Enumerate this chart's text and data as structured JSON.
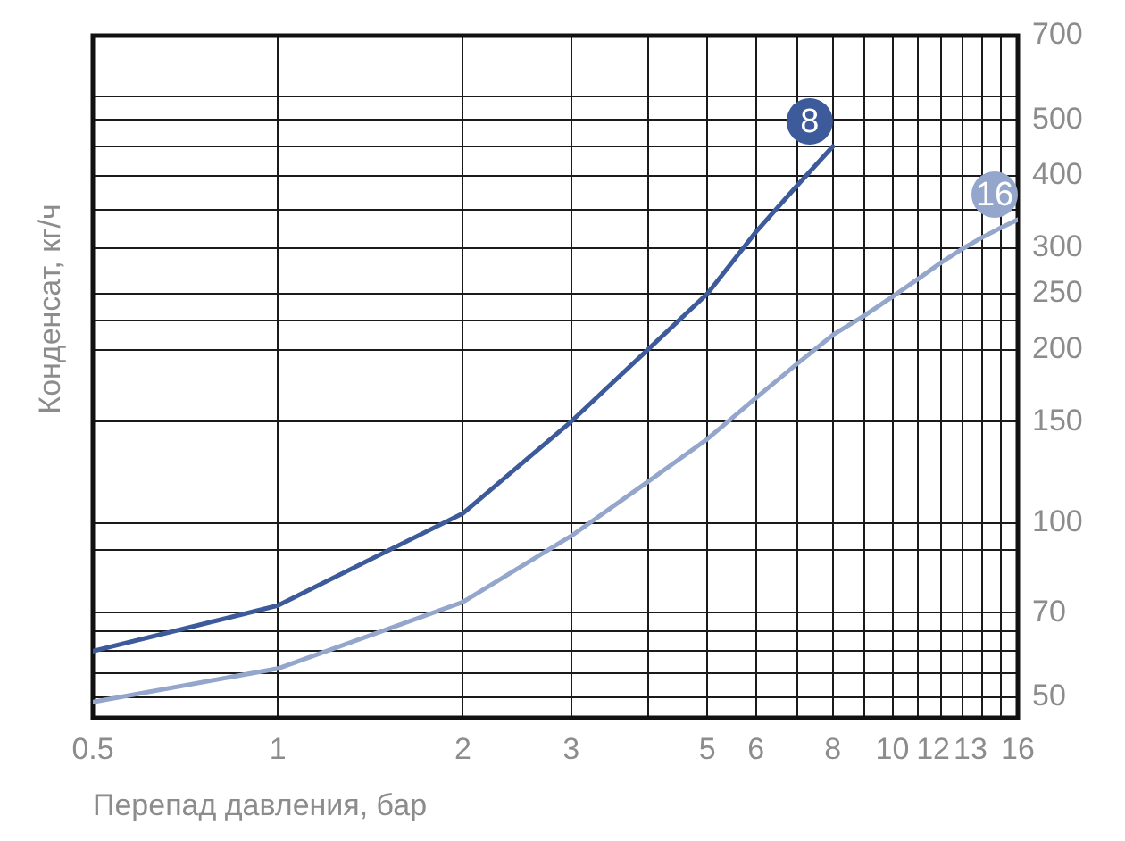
{
  "chart_data": {
    "type": "line",
    "xlabel": "Перепад давления, бар",
    "ylabel": "Конденсат, кг/ч",
    "log": "xy",
    "grid": true,
    "xlim": [
      0.5,
      16
    ],
    "xticks": [
      0.5,
      1,
      2,
      3,
      {
        "value": 4,
        "label": null
      },
      5,
      6,
      {
        "value": 7,
        "label": null
      },
      8,
      {
        "value": 9,
        "label": null
      },
      10,
      {
        "value": 11,
        "label": null
      },
      12,
      13,
      {
        "value": 14,
        "label": null
      },
      {
        "value": 15,
        "label": null
      },
      16
    ],
    "ylim": [
      46,
      700
    ],
    "yticks": [
      50,
      {
        "value": 55,
        "label": null
      },
      {
        "value": 60,
        "label": null
      },
      {
        "value": 65,
        "label": null
      },
      70,
      {
        "value": 90,
        "label": null
      },
      100,
      150,
      200,
      {
        "value": 225,
        "label": null
      },
      250,
      300,
      {
        "value": 350,
        "label": null
      },
      400,
      {
        "value": 450,
        "label": null
      },
      500,
      {
        "value": 550,
        "label": null
      },
      700
    ],
    "series": [
      {
        "name": "8",
        "color": "#3d5a9b",
        "x": [
          0.5,
          1,
          2,
          3,
          4,
          5,
          6,
          7,
          8
        ],
        "values": [
          60,
          72,
          104,
          150,
          200,
          250,
          320,
          385,
          450
        ]
      },
      {
        "name": "16",
        "color": "#94a6cc",
        "x": [
          0.5,
          1,
          2,
          3,
          4,
          5,
          6,
          7,
          8,
          9,
          10,
          11,
          12,
          13,
          14,
          15,
          16
        ],
        "values": [
          49,
          56,
          73,
          95,
          118,
          140,
          165,
          189,
          212,
          229,
          247,
          265,
          283,
          299,
          313,
          325,
          336
        ]
      }
    ]
  }
}
